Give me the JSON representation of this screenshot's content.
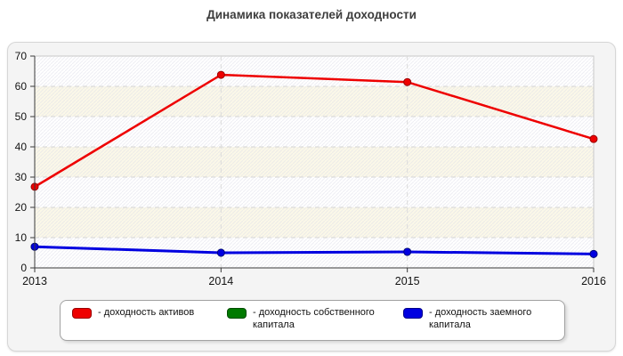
{
  "title": "Динамика показателей доходности",
  "chart_data": {
    "type": "line",
    "title": "Динамика показателей доходности",
    "categories": [
      "2013",
      "2014",
      "2015",
      "2016"
    ],
    "series": [
      {
        "name": "- доходность активов",
        "color": "#ee0000",
        "border": "#990000",
        "width": 2.5,
        "values": [
          26.8,
          63.8,
          61.4,
          42.6
        ]
      },
      {
        "name": "- доходность собственного капитала",
        "color": "#007a00",
        "border": "#004d00",
        "width": 2,
        "values": [
          7,
          5,
          5.3,
          4.6
        ]
      },
      {
        "name": "- доходность заемного капитала",
        "color": "#0000e0",
        "border": "#000088",
        "width": 3,
        "values": [
          7,
          5,
          5.3,
          4.6
        ]
      }
    ],
    "xlabel": "",
    "ylabel": "",
    "ylim": [
      0,
      70
    ],
    "ytick_step": 10,
    "yticks": [
      0,
      10,
      20,
      30,
      40,
      50,
      60,
      70
    ],
    "grid": true,
    "legend_position": "bottom"
  }
}
